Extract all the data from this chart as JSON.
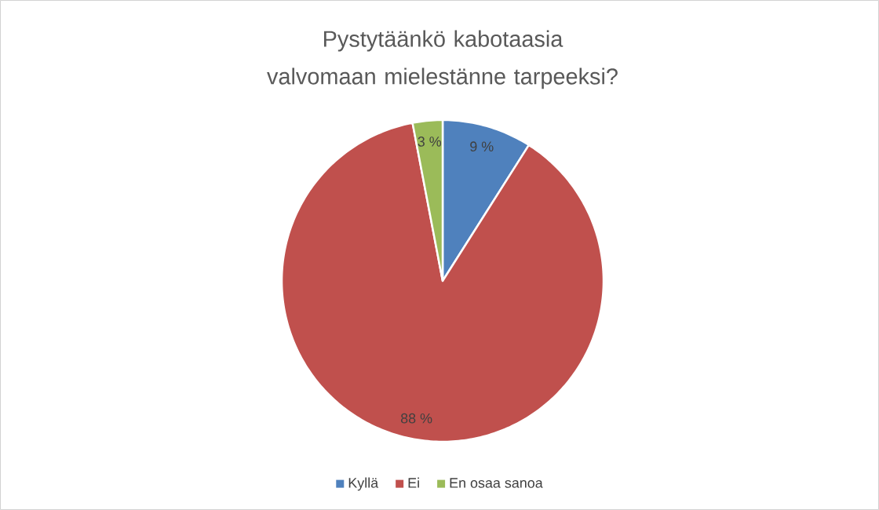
{
  "chart_data": {
    "type": "pie",
    "title": "Pystytäänkö kabotaasia valvomaan mielestänne tarpeeksi?",
    "categories": [
      "Kyllä",
      "Ei",
      "En osaa sanoa"
    ],
    "values": [
      9,
      88,
      3
    ],
    "colors": [
      "#4f81bd",
      "#c0504d",
      "#9bbb59"
    ],
    "value_labels": [
      "9 %",
      "88 %",
      "3 %"
    ],
    "legend": "bottom"
  }
}
